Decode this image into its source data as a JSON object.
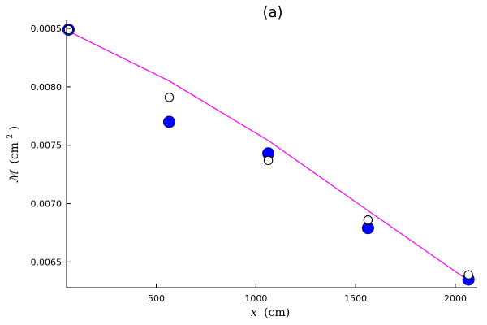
{
  "chart_data": {
    "type": "scatter",
    "title": "(a)",
    "xlabel_var": "x",
    "xlabel_unit": "(cm)",
    "ylabel_var": "ℳ",
    "ylabel_unit": "(cm",
    "ylabel_exp": "2",
    "ylabel_close": ")",
    "xlim": [
      50,
      2110
    ],
    "ylim": [
      0.00628,
      0.00857
    ],
    "x_ticks": [
      500,
      1000,
      1500,
      2000
    ],
    "x_tick_labels": [
      "500",
      "1000",
      "1500",
      "2000"
    ],
    "y_ticks": [
      0.0065,
      0.007,
      0.0075,
      0.008,
      0.0085
    ],
    "y_tick_labels": [
      "0.0065",
      "0.0070",
      "0.0075",
      "0.0080",
      "0.0085"
    ],
    "grid": false,
    "series": [
      {
        "style": "filled-circle",
        "color": "#0000ff",
        "points": [
          [
            60,
            0.00849
          ],
          [
            565,
            0.0077
          ],
          [
            1062,
            0.00743
          ],
          [
            1562,
            0.00679
          ],
          [
            2066,
            0.00635
          ]
        ]
      },
      {
        "style": "open-circle",
        "color": "#ffffff",
        "points": [
          [
            60,
            0.00849
          ],
          [
            565,
            0.00791
          ],
          [
            1062,
            0.00737
          ],
          [
            1562,
            0.00686
          ],
          [
            2066,
            0.00639
          ]
        ]
      },
      {
        "style": "line",
        "color": "#ff00ff",
        "points": [
          [
            60,
            0.008475
          ],
          [
            565,
            0.00805
          ],
          [
            1062,
            0.00754
          ],
          [
            1562,
            0.00694
          ],
          [
            2066,
            0.00634
          ]
        ]
      }
    ]
  }
}
